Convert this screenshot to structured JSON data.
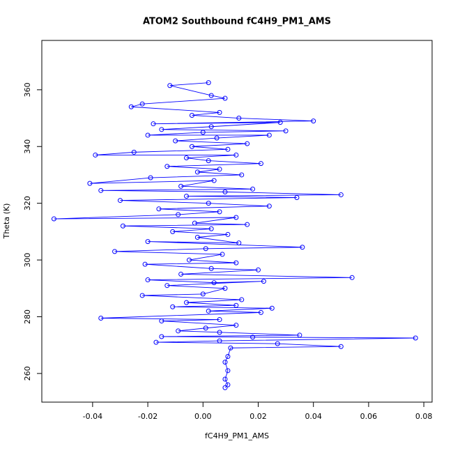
{
  "chart_data": {
    "type": "line",
    "markers": true,
    "title": "ATOM2 Southbound fC4H9_PM1_AMS",
    "x_label": "fC4H9_PM1_AMS",
    "y_label": "Theta (K)",
    "series": [
      {
        "color": "#0000ff",
        "x": [
          0.002,
          -0.012,
          0.003,
          0.008,
          -0.022,
          -0.026,
          0.006,
          -0.004,
          0.013,
          0.04,
          -0.018,
          0.028,
          0.003,
          -0.015,
          0.03,
          0.0,
          -0.02,
          0.024,
          0.005,
          -0.01,
          0.016,
          -0.004,
          0.009,
          -0.025,
          -0.039,
          0.012,
          -0.006,
          0.002,
          0.021,
          -0.013,
          0.006,
          -0.002,
          0.014,
          -0.019,
          -0.041,
          0.004,
          -0.008,
          0.018,
          -0.037,
          0.008,
          0.05,
          -0.006,
          0.034,
          -0.03,
          0.002,
          0.024,
          -0.016,
          0.006,
          -0.009,
          -0.054,
          0.012,
          -0.003,
          0.016,
          -0.029,
          0.003,
          -0.011,
          0.009,
          -0.002,
          0.013,
          -0.02,
          0.036,
          0.001,
          -0.032,
          0.007,
          -0.005,
          0.012,
          -0.021,
          0.003,
          0.02,
          -0.008,
          0.054,
          -0.02,
          0.004,
          0.022,
          -0.013,
          0.008,
          0.0,
          -0.022,
          0.014,
          -0.006,
          0.012,
          -0.011,
          0.025,
          0.002,
          0.021,
          -0.037,
          0.006,
          -0.015,
          0.012,
          0.001,
          -0.009,
          0.006,
          0.035,
          -0.015,
          0.018,
          0.077,
          0.006,
          -0.017,
          0.027,
          0.05,
          0.01,
          0.009,
          0.008,
          0.009,
          0.008,
          0.009,
          0.008
        ],
        "values": [
          362.5,
          361.5,
          358,
          357,
          355,
          354,
          352,
          351,
          350,
          349,
          348,
          348.5,
          347,
          346,
          345.5,
          345,
          344,
          344,
          343,
          342,
          341,
          340,
          339,
          338,
          337,
          337,
          336,
          335,
          334,
          333,
          332,
          331,
          330,
          329,
          327,
          328,
          326,
          325,
          324.5,
          324,
          323,
          322.5,
          322,
          321,
          320,
          319,
          318,
          317,
          316,
          314.5,
          315,
          313,
          312.5,
          312,
          311,
          310,
          309,
          308,
          306,
          306.5,
          304.5,
          304,
          303,
          302,
          300,
          299,
          298.5,
          297,
          296.5,
          295,
          293.8,
          293,
          292,
          292.5,
          291,
          290,
          288,
          287.5,
          286,
          285,
          284,
          283.5,
          283,
          282,
          281.5,
          279.5,
          279,
          278.5,
          277,
          276,
          275,
          274.5,
          273.5,
          273,
          272.8,
          272.5,
          271.5,
          271,
          270.5,
          269.5,
          269,
          266,
          264,
          261,
          258,
          256,
          255
        ]
      }
    ],
    "xlim": [
      -0.0584,
      0.083
    ],
    "ylim": [
      249.9,
      377.4
    ],
    "xticks": [
      -0.04,
      -0.02,
      {
        "value": 0,
        "label": "0.00"
      },
      0.02,
      0.04,
      0.06,
      0.08
    ],
    "yticks": [
      260,
      280,
      300,
      320,
      340,
      360
    ]
  }
}
